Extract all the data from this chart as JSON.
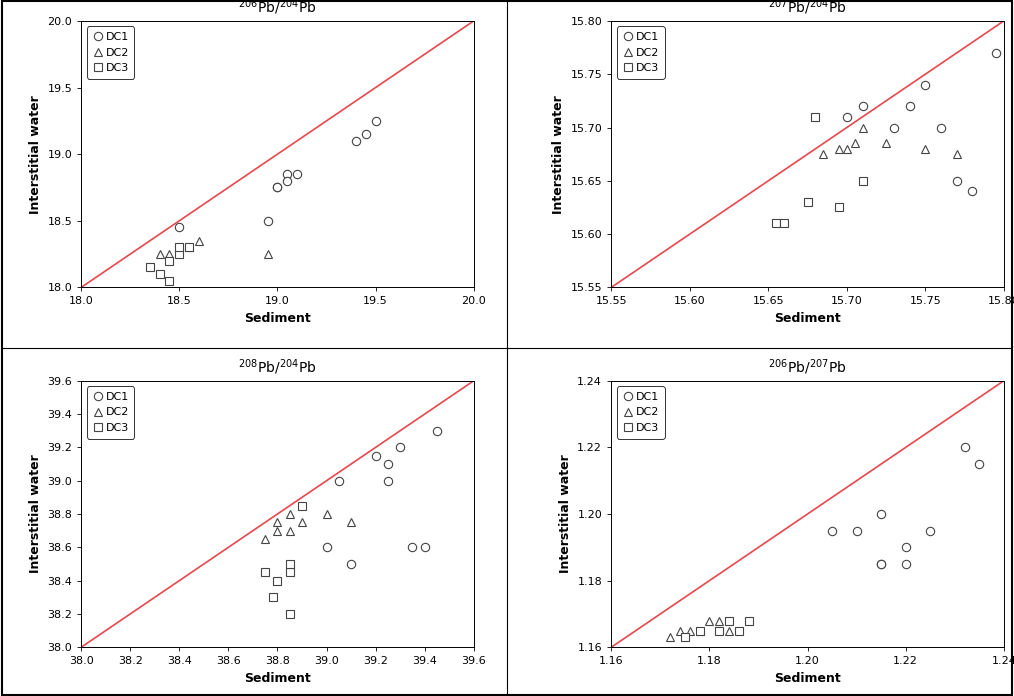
{
  "p1": {
    "title": "$^{206}$Pb/$^{204}$Pb",
    "xlim": [
      18.0,
      20.0
    ],
    "ylim": [
      18.0,
      20.0
    ],
    "xticks": [
      18.0,
      18.5,
      19.0,
      19.5,
      20.0
    ],
    "yticks": [
      18.0,
      18.5,
      19.0,
      19.5,
      20.0
    ],
    "dc1_x": [
      19.05,
      19.1,
      19.05,
      19.0,
      19.0,
      18.95,
      19.5,
      19.45,
      19.4,
      18.5
    ],
    "dc1_y": [
      18.85,
      18.85,
      18.8,
      18.75,
      18.75,
      18.5,
      19.25,
      19.15,
      19.1,
      18.45
    ],
    "dc2_x": [
      18.4,
      18.45,
      18.5,
      18.55,
      18.6,
      18.95
    ],
    "dc2_y": [
      18.25,
      18.25,
      18.3,
      18.3,
      18.35,
      18.25
    ],
    "dc3_x": [
      18.35,
      18.4,
      18.45,
      18.5,
      18.5,
      18.55,
      18.45
    ],
    "dc3_y": [
      18.15,
      18.1,
      18.2,
      18.25,
      18.3,
      18.3,
      18.05
    ]
  },
  "p2": {
    "title": "$^{207}$Pb/$^{204}$Pb",
    "xlim": [
      15.55,
      15.8
    ],
    "ylim": [
      15.55,
      15.8
    ],
    "xticks": [
      15.55,
      15.6,
      15.65,
      15.7,
      15.75,
      15.8
    ],
    "yticks": [
      15.55,
      15.6,
      15.65,
      15.7,
      15.75,
      15.8
    ],
    "dc1_x": [
      15.7,
      15.71,
      15.73,
      15.74,
      15.75,
      15.76,
      15.77,
      15.78,
      15.795
    ],
    "dc1_y": [
      15.71,
      15.72,
      15.7,
      15.72,
      15.74,
      15.7,
      15.65,
      15.64,
      15.77
    ],
    "dc2_x": [
      15.685,
      15.695,
      15.7,
      15.705,
      15.71,
      15.725,
      15.75,
      15.77
    ],
    "dc2_y": [
      15.675,
      15.68,
      15.68,
      15.685,
      15.7,
      15.685,
      15.68,
      15.675
    ],
    "dc3_x": [
      15.655,
      15.66,
      15.675,
      15.68,
      15.695,
      15.71
    ],
    "dc3_y": [
      15.61,
      15.61,
      15.63,
      15.71,
      15.625,
      15.65
    ]
  },
  "p3": {
    "title": "$^{208}$Pb/$^{204}$Pb",
    "xlim": [
      38.0,
      39.6
    ],
    "ylim": [
      38.0,
      39.6
    ],
    "xticks": [
      38.0,
      38.2,
      38.4,
      38.6,
      38.8,
      39.0,
      39.2,
      39.4,
      39.6
    ],
    "yticks": [
      38.0,
      38.2,
      38.4,
      38.6,
      38.8,
      39.0,
      39.2,
      39.4,
      39.6
    ],
    "dc1_x": [
      39.2,
      39.25,
      39.25,
      39.3,
      39.35,
      39.4,
      39.45,
      39.0,
      39.05,
      39.1
    ],
    "dc1_y": [
      39.15,
      39.0,
      39.1,
      39.2,
      38.6,
      38.6,
      39.3,
      38.6,
      39.0,
      38.5
    ],
    "dc2_x": [
      38.75,
      38.8,
      38.85,
      38.9,
      39.0,
      39.1,
      38.8,
      38.85
    ],
    "dc2_y": [
      38.65,
      38.7,
      38.7,
      38.75,
      38.8,
      38.75,
      38.75,
      38.8
    ],
    "dc3_x": [
      38.75,
      38.8,
      38.85,
      38.85,
      38.9,
      38.78,
      38.85
    ],
    "dc3_y": [
      38.45,
      38.4,
      38.45,
      38.5,
      38.85,
      38.3,
      38.2
    ]
  },
  "p4": {
    "title": "$^{206}$Pb/$^{207}$Pb",
    "xlim": [
      1.16,
      1.24
    ],
    "ylim": [
      1.16,
      1.24
    ],
    "xticks": [
      1.16,
      1.18,
      1.2,
      1.22,
      1.24
    ],
    "yticks": [
      1.16,
      1.18,
      1.2,
      1.22,
      1.24
    ],
    "dc1_x": [
      1.205,
      1.21,
      1.215,
      1.215,
      1.22,
      1.225,
      1.215,
      1.22,
      1.232,
      1.235
    ],
    "dc1_y": [
      1.195,
      1.195,
      1.2,
      1.185,
      1.185,
      1.195,
      1.185,
      1.19,
      1.22,
      1.215
    ],
    "dc2_x": [
      1.172,
      1.174,
      1.176,
      1.178,
      1.18,
      1.182,
      1.184
    ],
    "dc2_y": [
      1.163,
      1.165,
      1.165,
      1.165,
      1.168,
      1.168,
      1.165
    ],
    "dc3_x": [
      1.175,
      1.178,
      1.182,
      1.184,
      1.186,
      1.188
    ],
    "dc3_y": [
      1.163,
      1.165,
      1.165,
      1.168,
      1.165,
      1.168
    ]
  },
  "line_color": "#E8474C",
  "marker_size": 6,
  "marker_edge_color": "#444444",
  "marker_face_color": "white",
  "marker_edge_width": 0.8,
  "xlabel": "Sediment",
  "ylabel": "Interstitial water",
  "title_fontsize": 10,
  "label_fontsize": 9,
  "tick_fontsize": 8,
  "legend_fontsize": 8
}
